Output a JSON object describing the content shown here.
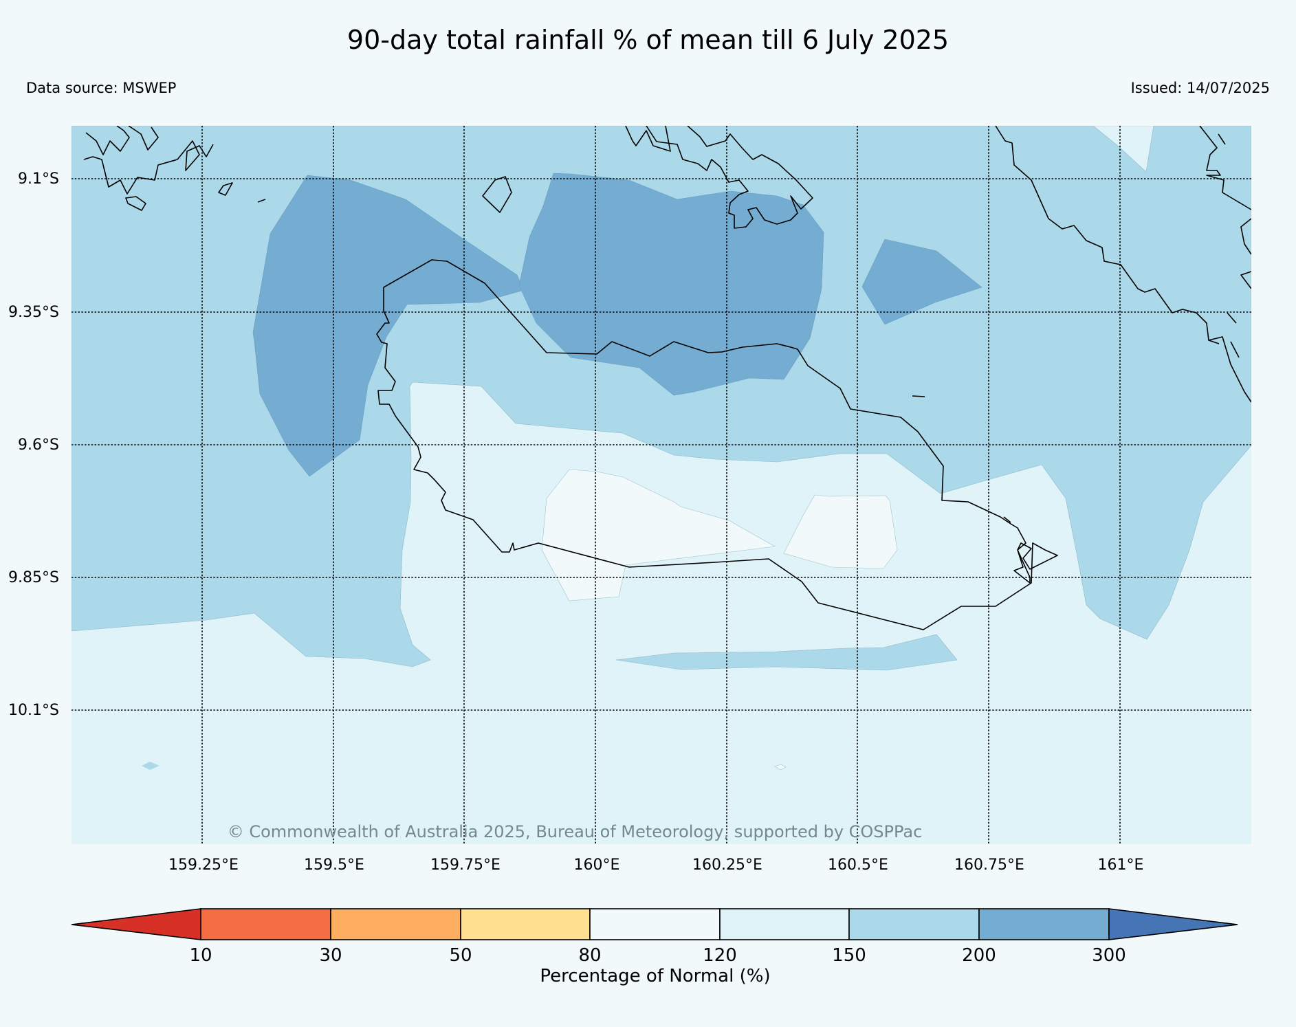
{
  "title": "90-day total rainfall % of mean till 6 July 2025",
  "data_source": "Data source: MSWEP",
  "issued": "Issued: 14/07/2025",
  "copyright": "© Commonwealth of Australia 2025, Bureau of Meteorology, supported by COSPPac",
  "map": {
    "lat_labels": [
      "9.1°S",
      "9.35°S",
      "9.6°S",
      "9.85°S",
      "10.1°S"
    ],
    "lon_labels": [
      "159.25°E",
      "159.5°E",
      "159.75°E",
      "160°E",
      "160.25°E",
      "160.5°E",
      "160.75°E",
      "161°E"
    ],
    "background_class_color": "#e0f3f8"
  },
  "colorbar": {
    "label": "Percentage of Normal (%)",
    "ticks": [
      "10",
      "30",
      "50",
      "80",
      "120",
      "150",
      "200",
      "300"
    ],
    "under_color": "#d73027",
    "over_color": "#4575b4",
    "colors": [
      "#f46d43",
      "#fdae61",
      "#fee090",
      "#f1f9fb",
      "#e0f3f8",
      "#abd9e9",
      "#74add1"
    ]
  }
}
